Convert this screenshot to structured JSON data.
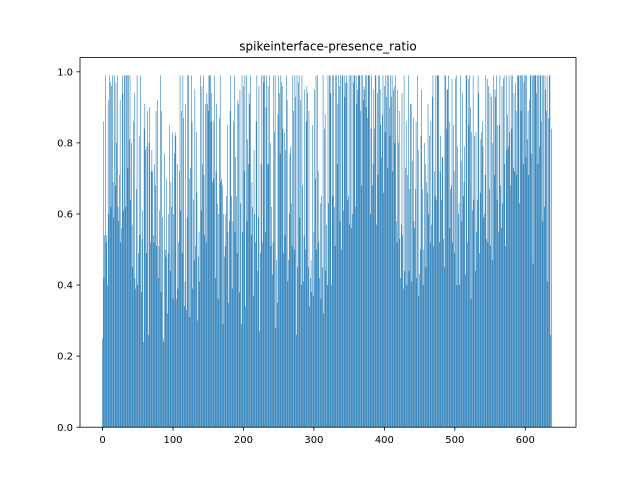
{
  "chart_data": {
    "type": "bar",
    "title": "spikeinterface-presence_ratio",
    "xlabel": "",
    "ylabel": "",
    "xlim": [
      -32,
      672
    ],
    "ylim": [
      0.0,
      1.04
    ],
    "x_ticks": [
      0,
      100,
      200,
      300,
      400,
      500,
      600
    ],
    "x_tick_labels": [
      "0",
      "100",
      "200",
      "300",
      "400",
      "500",
      "600"
    ],
    "y_ticks": [
      0.0,
      0.2,
      0.4,
      0.6,
      0.8,
      1.0
    ],
    "y_tick_labels": [
      "0.0",
      "0.2",
      "0.4",
      "0.6",
      "0.8",
      "1.0"
    ],
    "bar_color": "#1f77b4",
    "bar_width": 0.8,
    "grid": false,
    "series": [
      {
        "x_start": 0,
        "count": 640,
        "values": [
          0.25,
          0.86,
          0.42,
          0.54,
          0.99,
          0.52,
          0.54,
          0.4,
          0.92,
          0.6,
          0.99,
          0.97,
          0.62,
          0.96,
          0.99,
          0.69,
          0.59,
          0.99,
          0.68,
          0.97,
          0.8,
          0.99,
          0.62,
          0.58,
          0.71,
          0.92,
          0.52,
          0.56,
          0.99,
          0.94,
          0.61,
          0.99,
          0.99,
          0.62,
          0.99,
          0.99,
          0.73,
          0.99,
          0.81,
          0.99,
          0.64,
          0.8,
          0.57,
          0.45,
          0.86,
          0.94,
          0.42,
          0.39,
          0.67,
          0.99,
          0.4,
          0.49,
          0.82,
          0.54,
          0.99,
          0.38,
          0.53,
          0.61,
          0.24,
          0.84,
          0.91,
          0.78,
          0.49,
          0.79,
          0.89,
          0.26,
          0.8,
          0.9,
          0.52,
          0.72,
          0.78,
          0.72,
          0.54,
          0.52,
          0.74,
          0.68,
          0.89,
          0.51,
          0.92,
          0.42,
          0.51,
          0.61,
          0.99,
          0.38,
          0.89,
          0.59,
          0.25,
          0.24,
          0.77,
          0.5,
          0.48,
          0.7,
          0.32,
          0.49,
          0.6,
          0.85,
          0.44,
          0.69,
          0.62,
          0.83,
          0.36,
          0.6,
          0.77,
          0.83,
          0.82,
          0.36,
          0.74,
          0.39,
          0.52,
          0.72,
          0.99,
          0.61,
          0.89,
          0.49,
          0.99,
          0.87,
          0.34,
          0.41,
          0.91,
          0.33,
          0.59,
          0.99,
          0.99,
          0.7,
          0.31,
          0.73,
          0.99,
          0.86,
          0.39,
          0.64,
          0.47,
          0.95,
          0.51,
          0.83,
          0.66,
          0.3,
          0.48,
          0.55,
          0.41,
          0.99,
          0.61,
          0.96,
          0.74,
          0.99,
          0.71,
          0.54,
          0.91,
          0.52,
          0.94,
          0.91,
          0.89,
          0.99,
          0.99,
          0.99,
          0.86,
          0.94,
          0.69,
          0.86,
          0.7,
          0.99,
          0.42,
          0.72,
          0.91,
          0.63,
          0.36,
          0.6,
          0.87,
          0.99,
          0.69,
          0.7,
          0.68,
          0.29,
          0.6,
          0.48,
          0.51,
          0.6,
          0.65,
          0.85,
          0.55,
          0.35,
          0.58,
          0.89,
          0.99,
          0.65,
          0.39,
          0.58,
          0.86,
          0.99,
          0.55,
          0.76,
          0.65,
          0.49,
          0.92,
          0.91,
          0.38,
          0.95,
          0.63,
          0.29,
          0.99,
          0.55,
          0.96,
          0.72,
          0.99,
          0.34,
          0.99,
          0.58,
          0.81,
          0.74,
          0.94,
          0.91,
          0.99,
          0.54,
          0.69,
          0.62,
          0.37,
          0.78,
          0.6,
          0.52,
          0.86,
          0.99,
          0.44,
          0.59,
          0.96,
          0.27,
          0.49,
          0.74,
          0.99,
          0.52,
          0.99,
          0.97,
          0.99,
          0.55,
          0.9,
          0.99,
          0.74,
          0.96,
          0.74,
          0.99,
          0.8,
          0.51,
          0.62,
          0.43,
          0.52,
          0.99,
          0.83,
          0.99,
          0.28,
          0.47,
          0.35,
          0.88,
          0.99,
          0.94,
          0.77,
          0.99,
          0.97,
          0.96,
          0.84,
          0.49,
          0.83,
          0.54,
          0.78,
          0.99,
          0.92,
          0.41,
          0.47,
          0.6,
          0.77,
          0.79,
          0.63,
          0.51,
          0.99,
          0.89,
          0.5,
          0.99,
          0.93,
          0.26,
          0.99,
          0.45,
          0.97,
          0.99,
          0.59,
          0.92,
          0.4,
          0.99,
          0.68,
          0.41,
          0.54,
          0.95,
          0.5,
          0.86,
          0.96,
          0.94,
          0.45,
          0.89,
          0.34,
          0.42,
          0.47,
          0.38,
          0.85,
          0.37,
          0.55,
          0.95,
          0.7,
          0.99,
          0.5,
          0.99,
          0.72,
          0.52,
          0.42,
          0.63,
          0.36,
          0.65,
          0.45,
          0.99,
          0.32,
          0.84,
          0.88,
          0.44,
          0.57,
          0.4,
          0.99,
          0.63,
          0.99,
          0.99,
          0.94,
          0.4,
          0.99,
          0.65,
          0.99,
          0.62,
          0.51,
          0.99,
          0.99,
          0.74,
          0.91,
          0.99,
          0.96,
          0.58,
          0.99,
          0.5,
          0.99,
          0.99,
          0.61,
          0.99,
          0.93,
          0.97,
          0.99,
          0.97,
          0.64,
          0.65,
          0.99,
          0.57,
          0.99,
          0.56,
          0.99,
          0.6,
          0.97,
          0.99,
          0.99,
          0.62,
          0.99,
          0.91,
          0.95,
          0.99,
          0.99,
          0.99,
          0.89,
          0.99,
          0.68,
          0.99,
          0.92,
          0.96,
          0.95,
          0.99,
          0.9,
          0.99,
          0.87,
          0.99,
          0.99,
          0.99,
          0.6,
          0.84,
          0.99,
          0.68,
          0.74,
          0.95,
          0.84,
          0.99,
          0.99,
          0.57,
          0.94,
          0.71,
          0.99,
          0.99,
          0.95,
          0.85,
          0.76,
          0.88,
          0.99,
          0.66,
          0.96,
          0.83,
          0.99,
          0.93,
          0.99,
          0.73,
          0.99,
          0.9,
          0.82,
          0.99,
          0.93,
          0.99,
          0.72,
          0.95,
          0.96,
          0.8,
          0.99,
          0.58,
          0.52,
          0.95,
          0.8,
          0.89,
          0.53,
          0.42,
          0.57,
          0.94,
          0.54,
          0.39,
          0.99,
          0.44,
          0.73,
          0.86,
          0.4,
          0.71,
          0.99,
          0.44,
          0.67,
          0.91,
          0.91,
          0.41,
          0.75,
          0.87,
          0.58,
          0.56,
          0.67,
          0.86,
          0.42,
          0.99,
          0.78,
          0.37,
          0.43,
          0.5,
          0.82,
          0.95,
          0.67,
          0.4,
          0.5,
          0.8,
          0.74,
          0.45,
          0.69,
          0.66,
          0.91,
          0.6,
          0.82,
          0.52,
          0.86,
          0.57,
          0.93,
          0.99,
          0.51,
          0.72,
          0.65,
          0.99,
          0.64,
          0.99,
          0.99,
          0.99,
          0.52,
          0.72,
          0.82,
          0.64,
          0.76,
          0.76,
          0.53,
          0.45,
          0.99,
          0.99,
          0.84,
          0.95,
          0.95,
          0.99,
          0.86,
          0.56,
          0.67,
          0.68,
          0.98,
          0.52,
          0.85,
          0.72,
          0.49,
          0.98,
          0.99,
          0.4,
          0.79,
          0.6,
          0.63,
          0.4,
          0.99,
          0.75,
          0.58,
          0.94,
          0.65,
          0.69,
          0.79,
          0.43,
          0.99,
          0.99,
          0.52,
          0.98,
          0.85,
          0.99,
          0.9,
          0.36,
          0.83,
          0.61,
          0.99,
          0.64,
          0.82,
          0.44,
          0.83,
          0.55,
          0.64,
          0.99,
          0.94,
          0.49,
          0.66,
          0.81,
          0.83,
          0.86,
          0.79,
          0.59,
          0.6,
          0.71,
          0.99,
          0.53,
          0.98,
          0.52,
          0.96,
          0.67,
          0.94,
          0.51,
          0.93,
          0.47,
          0.8,
          0.99,
          0.71,
          0.95,
          0.93,
          0.99,
          0.64,
          0.85,
          0.55,
          0.85,
          0.99,
          0.68,
          0.56,
          0.96,
          0.63,
          0.98,
          0.99,
          0.74,
          0.51,
          0.99,
          0.78,
          0.88,
          0.79,
          0.99,
          0.83,
          0.68,
          0.99,
          0.84,
          0.99,
          0.73,
          0.94,
          0.72,
          0.97,
          0.89,
          0.71,
          0.99,
          0.99,
          0.99,
          0.63,
          0.99,
          0.89,
          0.99,
          0.99,
          0.74,
          0.97,
          0.99,
          0.99,
          0.76,
          0.99,
          0.81,
          0.89,
          0.71,
          0.92,
          0.99,
          0.99,
          0.77,
          0.99,
          0.46,
          0.99,
          0.99,
          0.99,
          0.99,
          0.94,
          0.99,
          0.74,
          0.99,
          0.79,
          0.99,
          0.99,
          0.86,
          0.99,
          0.58,
          0.99,
          0.62,
          0.99,
          0.95,
          0.89,
          0.99,
          0.41,
          0.87,
          0.99,
          0.99,
          0.26,
          0.84
        ]
      }
    ]
  }
}
